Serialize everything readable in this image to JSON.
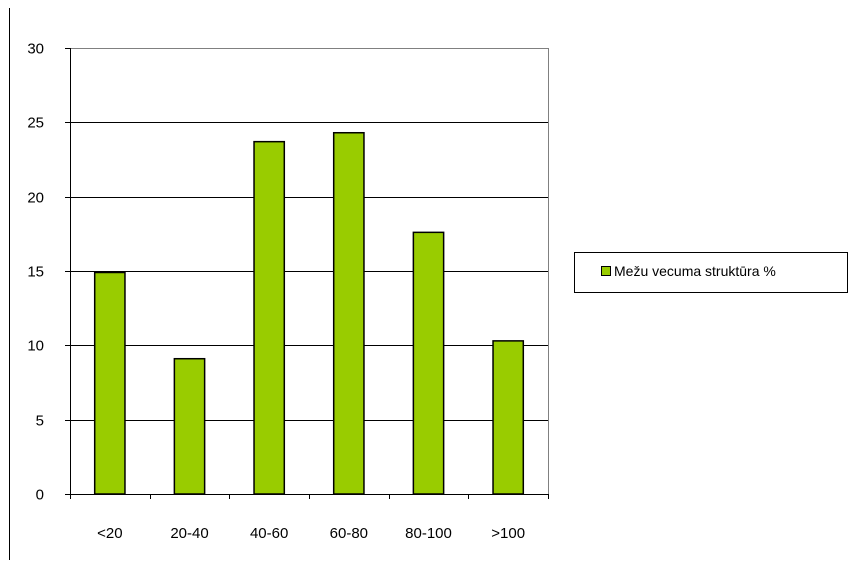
{
  "chart_data": {
    "type": "bar",
    "categories": [
      "<20",
      "20-40",
      "40-60",
      "60-80",
      "80-100",
      ">100"
    ],
    "series": [
      {
        "name": "Mežu vecuma struktūra %",
        "values": [
          14.9,
          9.1,
          23.7,
          24.3,
          17.6,
          10.3
        ],
        "color": "#99CC00"
      }
    ],
    "y_ticks": [
      0,
      5,
      10,
      15,
      20,
      25,
      30
    ],
    "ylim": [
      0,
      30
    ],
    "grid": true,
    "legend_position": "right"
  }
}
